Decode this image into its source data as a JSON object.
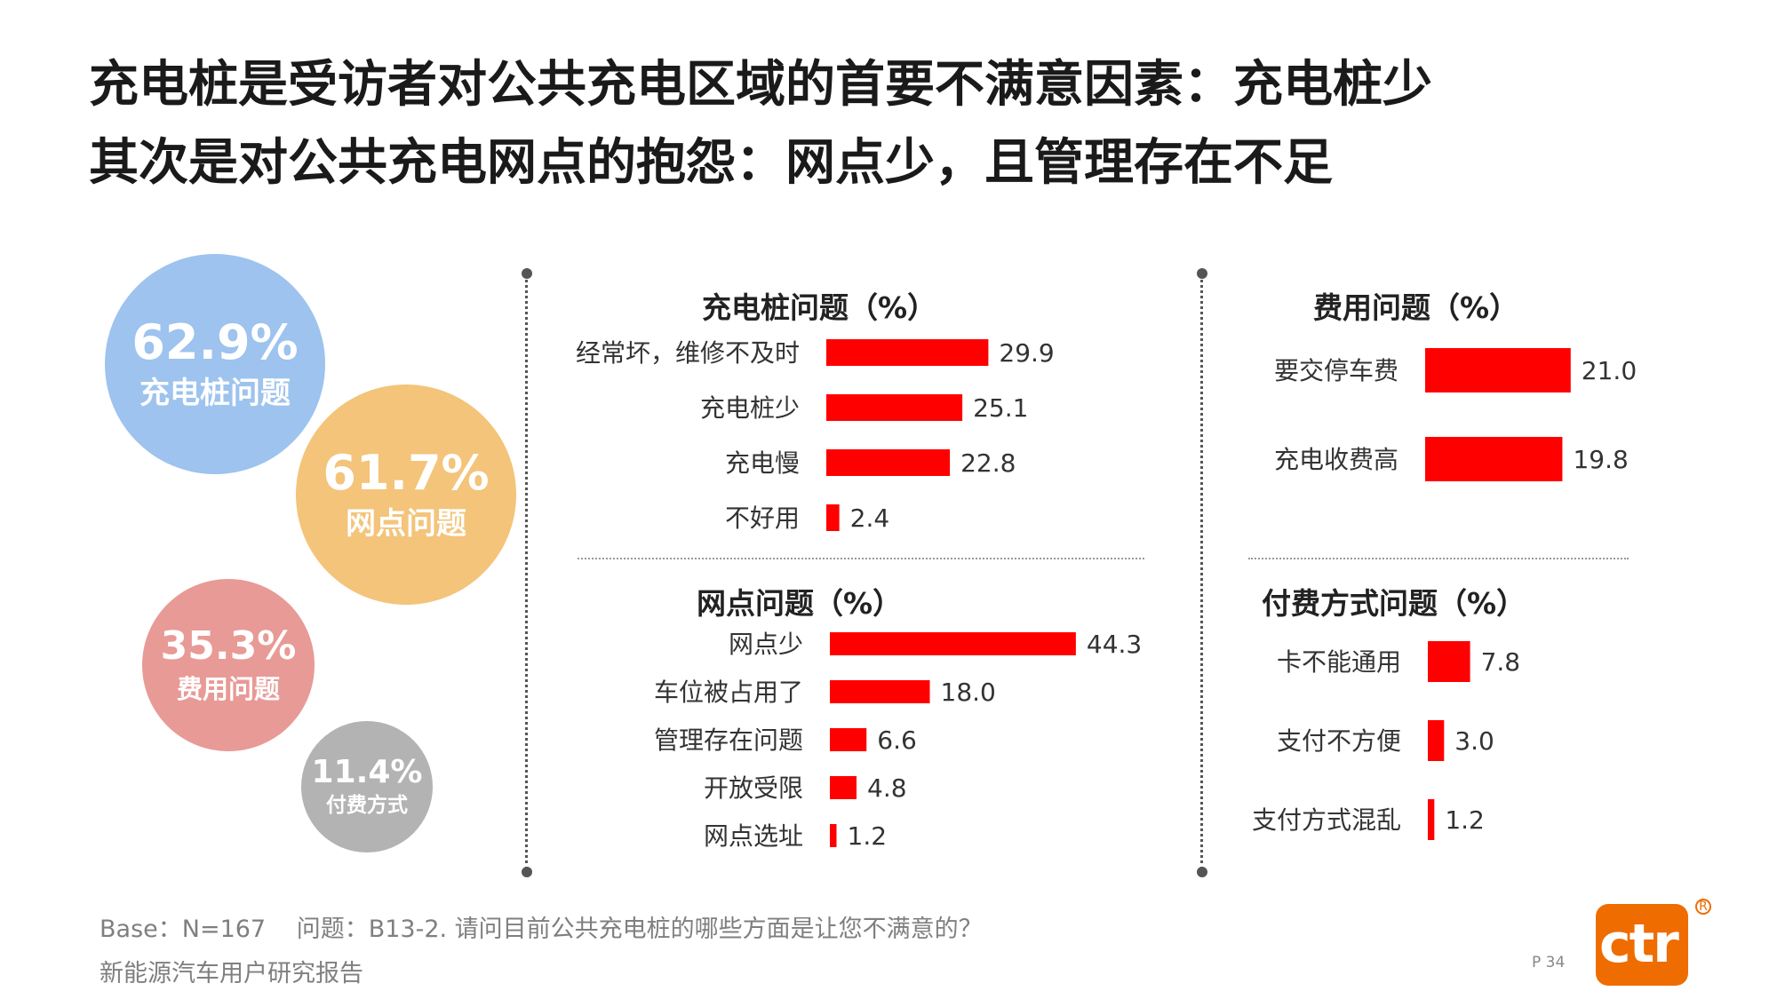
{
  "title": {
    "line1": "充电桩是受访者对公共充电区域的首要不满意因素：充电桩少",
    "line2": "其次是对公共充电网点的抱怨：网点少，且管理存在不足"
  },
  "bubbles": [
    {
      "pct": "62.9%",
      "label": "充电桩问题",
      "color": "#9dc3ee"
    },
    {
      "pct": "61.7%",
      "label": "网点问题",
      "color": "#f3c47a"
    },
    {
      "pct": "35.3%",
      "label": "费用问题",
      "color": "#e89a96"
    },
    {
      "pct": "11.4%",
      "label": "付费方式",
      "color": "#b3b3b3"
    }
  ],
  "colors": {
    "bar": "#ff0000",
    "divider": "#555555"
  },
  "chart_data": [
    {
      "type": "bar",
      "title": "充电桩问题（%）",
      "categories": [
        "经常坏，维修不及时",
        "充电桩少",
        "充电慢",
        "不好用"
      ],
      "values": [
        29.9,
        25.1,
        22.8,
        2.4
      ],
      "labels": [
        "29.9",
        "25.1",
        "22.8",
        "2.4"
      ]
    },
    {
      "type": "bar",
      "title": "网点问题（%）",
      "categories": [
        "网点少",
        "车位被占用了",
        "管理存在问题",
        "开放受限",
        "网点选址"
      ],
      "values": [
        44.3,
        18.0,
        6.6,
        4.8,
        1.2
      ],
      "labels": [
        "44.3",
        "18.0",
        "6.6",
        "4.8",
        "1.2"
      ]
    },
    {
      "type": "bar",
      "title": "费用问题（%）",
      "categories": [
        "要交停车费",
        "充电收费高"
      ],
      "values": [
        21.0,
        19.8
      ],
      "labels": [
        "21.0",
        "19.8"
      ]
    },
    {
      "type": "bar",
      "title": "付费方式问题（%）",
      "categories": [
        "卡不能通用",
        "支付不方便",
        "支付方式混乱"
      ],
      "values": [
        7.8,
        3.0,
        1.2
      ],
      "labels": [
        "7.8",
        "3.0",
        "1.2"
      ]
    }
  ],
  "footer": {
    "base": "Base：N=167",
    "question": "问题：B13-2. 请问目前公共充电桩的哪些方面是让您不满意的？",
    "report": "新能源汽车用户研究报告",
    "page": "P 34",
    "logo": "ctr"
  }
}
